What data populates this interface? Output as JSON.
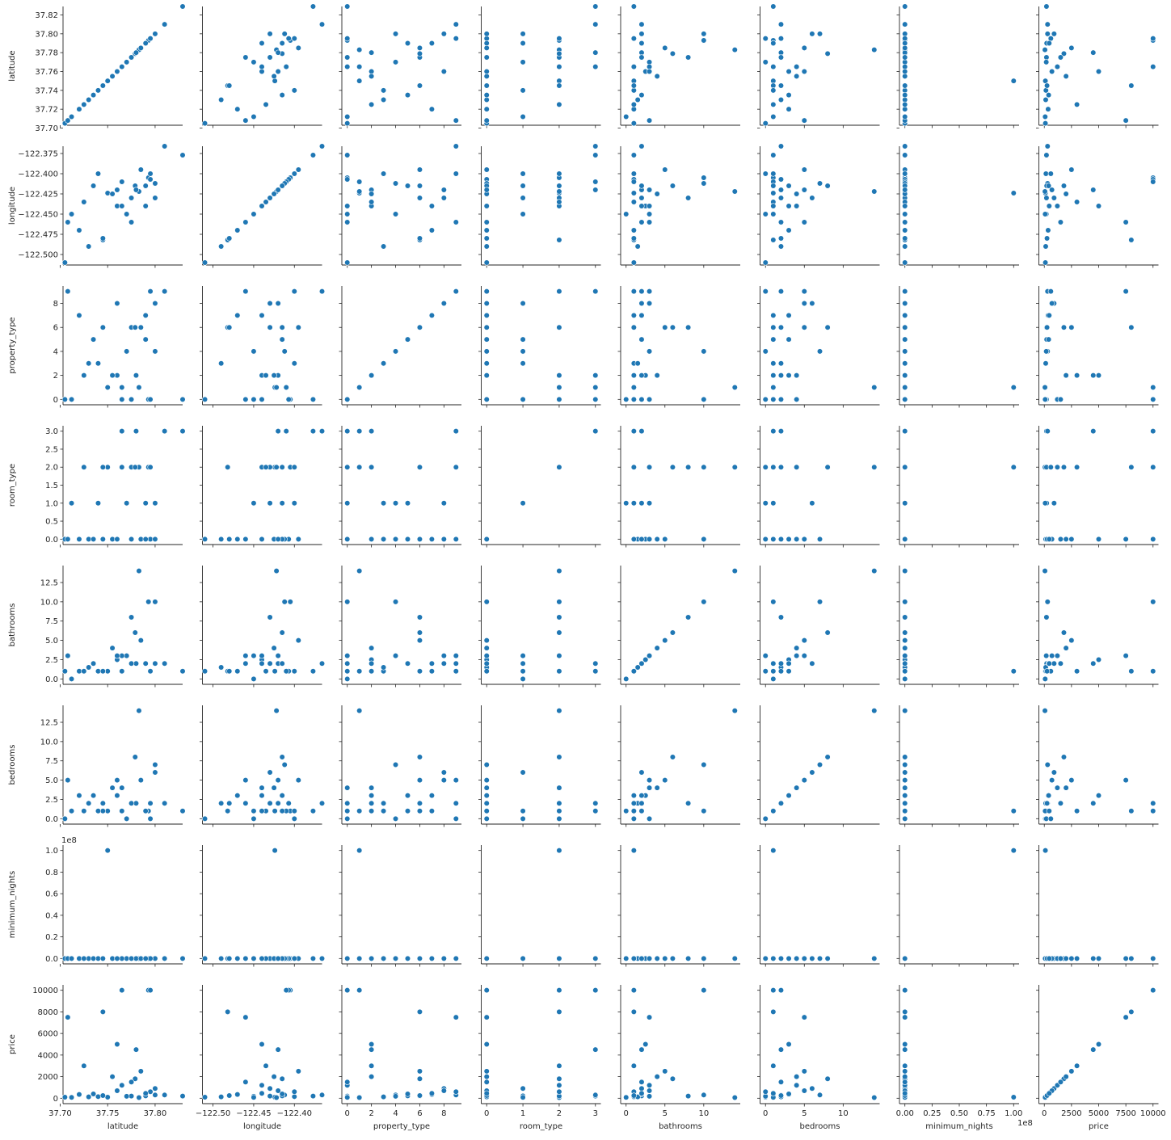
{
  "figure": {
    "title": ""
  },
  "colors": {
    "point": "#1f77b4",
    "point_edge": "#ffffff",
    "axis": "#262626",
    "background": "#ffffff"
  },
  "chart_data": {
    "type": "scatter",
    "kind": "pairplot-matrix",
    "grid": false,
    "variables": [
      "latitude",
      "longitude",
      "property_type",
      "room_type",
      "bathrooms",
      "bedrooms",
      "minimum_nights",
      "price"
    ],
    "axes": {
      "latitude": {
        "range": [
          37.703,
          37.829
        ],
        "ticks": [
          37.7,
          37.72,
          37.74,
          37.76,
          37.78,
          37.8,
          37.82
        ],
        "tick_labels_y": [
          "37.70",
          "37.72",
          "37.74",
          "37.76",
          "37.78",
          "37.80",
          "37.82"
        ],
        "tick_labels_x": [
          "37.70",
          "37.75",
          "37.80"
        ],
        "ticks_x": [
          37.7,
          37.75,
          37.8
        ]
      },
      "longitude": {
        "range": [
          -122.513,
          -122.366
        ],
        "ticks": [
          -122.5,
          -122.475,
          -122.45,
          -122.425,
          -122.4,
          -122.375
        ],
        "tick_labels_y": [
          "−122.500",
          "−122.475",
          "−122.450",
          "−122.425",
          "−122.400",
          "−122.375"
        ],
        "ticks_x": [
          -122.5,
          -122.45,
          -122.4
        ],
        "tick_labels_x": [
          "−122.50",
          "−122.45",
          "−122.40"
        ]
      },
      "property_type": {
        "range": [
          -0.45,
          9.45
        ],
        "ticks": [
          0,
          2,
          4,
          6,
          8
        ],
        "tick_labels_y": [
          "0",
          "2",
          "4",
          "6",
          "8"
        ],
        "ticks_x": [
          0,
          2,
          4,
          6,
          8
        ],
        "tick_labels_x": [
          "0",
          "2",
          "4",
          "6",
          "8"
        ]
      },
      "room_type": {
        "range": [
          -0.15,
          3.15
        ],
        "ticks": [
          0.0,
          0.5,
          1.0,
          1.5,
          2.0,
          2.5,
          3.0
        ],
        "tick_labels_y": [
          "0.0",
          "0.5",
          "1.0",
          "1.5",
          "2.0",
          "2.5",
          "3.0"
        ],
        "ticks_x": [
          0,
          1,
          2,
          3
        ],
        "tick_labels_x": [
          "0",
          "1",
          "2",
          "3"
        ]
      },
      "bathrooms": {
        "range": [
          -0.7,
          14.7
        ],
        "ticks": [
          0.0,
          2.5,
          5.0,
          7.5,
          10.0,
          12.5
        ],
        "tick_labels_y": [
          "0.0",
          "2.5",
          "5.0",
          "7.5",
          "10.0",
          "12.5"
        ],
        "ticks_x": [
          0,
          5,
          10
        ],
        "tick_labels_x": [
          "0",
          "5",
          "10"
        ]
      },
      "bedrooms": {
        "range": [
          -0.7,
          14.7
        ],
        "ticks": [
          0.0,
          2.5,
          5.0,
          7.5,
          10.0,
          12.5
        ],
        "tick_labels_y": [
          "0.0",
          "2.5",
          "5.0",
          "7.5",
          "10.0",
          "12.5"
        ],
        "ticks_x": [
          0,
          5,
          10
        ],
        "tick_labels_x": [
          "0",
          "5",
          "10"
        ]
      },
      "minimum_nights": {
        "range": [
          -5000000,
          105000000
        ],
        "ticks": [
          0,
          20000000,
          40000000,
          60000000,
          80000000,
          100000000
        ],
        "tick_labels_y": [
          "0.0",
          "0.2",
          "0.4",
          "0.6",
          "0.8",
          "1.0"
        ],
        "ticks_x": [
          0,
          25000000,
          50000000,
          75000000,
          100000000
        ],
        "tick_labels_x": [
          "0.00",
          "0.25",
          "0.50",
          "0.75",
          "1.00"
        ],
        "offset_text": "1e8"
      },
      "price": {
        "range": [
          -500,
          10500
        ],
        "ticks": [
          0,
          2000,
          4000,
          6000,
          8000,
          10000
        ],
        "tick_labels_y": [
          "0",
          "2000",
          "4000",
          "6000",
          "8000",
          "10000"
        ],
        "ticks_x": [
          0,
          2500,
          5000,
          7500,
          10000
        ],
        "tick_labels_x": [
          "0",
          "2500",
          "5000",
          "7500",
          "10000"
        ]
      }
    },
    "rows": [
      {
        "latitude": 37.829,
        "longitude": -122.377,
        "property_type": 0,
        "room_type": 3,
        "bathrooms": 1,
        "bedrooms": 1,
        "minimum_nights": 0,
        "price": 200
      },
      {
        "latitude": 37.705,
        "longitude": -122.51,
        "property_type": 0,
        "room_type": 0,
        "bathrooms": 1,
        "bedrooms": 0,
        "minimum_nights": 1,
        "price": 100
      },
      {
        "latitude": 37.81,
        "longitude": -122.366,
        "property_type": 9,
        "room_type": 3,
        "bathrooms": 2,
        "bedrooms": 2,
        "minimum_nights": 2,
        "price": 300
      },
      {
        "latitude": 37.75,
        "longitude": -122.424,
        "property_type": 1,
        "room_type": 2,
        "bathrooms": 1,
        "bedrooms": 1,
        "minimum_nights": 100000000,
        "price": 100
      },
      {
        "latitude": 37.783,
        "longitude": -122.422,
        "property_type": 1,
        "room_type": 2,
        "bathrooms": 14,
        "bedrooms": 14,
        "minimum_nights": 1,
        "price": 60
      },
      {
        "latitude": 37.708,
        "longitude": -122.46,
        "property_type": 9,
        "room_type": 0,
        "bathrooms": 3,
        "bedrooms": 5,
        "minimum_nights": 2,
        "price": 7500
      },
      {
        "latitude": 37.745,
        "longitude": -122.482,
        "property_type": 6,
        "room_type": 2,
        "bathrooms": 1,
        "bedrooms": 1,
        "minimum_nights": 1,
        "price": 8000
      },
      {
        "latitude": 37.793,
        "longitude": -122.405,
        "property_type": 0,
        "room_type": 2,
        "bathrooms": 10,
        "bedrooms": 1,
        "minimum_nights": 3,
        "price": 10000
      },
      {
        "latitude": 37.795,
        "longitude": -122.407,
        "property_type": 0,
        "room_type": 0,
        "bathrooms": 1,
        "bedrooms": 2,
        "minimum_nights": 2,
        "price": 10000
      },
      {
        "latitude": 37.765,
        "longitude": -122.41,
        "property_type": 1,
        "room_type": 3,
        "bathrooms": 1,
        "bedrooms": 1,
        "minimum_nights": 1,
        "price": 10000
      },
      {
        "latitude": 37.775,
        "longitude": -122.43,
        "property_type": 6,
        "room_type": 2,
        "bathrooms": 8,
        "bedrooms": 2,
        "minimum_nights": 1,
        "price": 200
      },
      {
        "latitude": 37.779,
        "longitude": -122.415,
        "property_type": 6,
        "room_type": 2,
        "bathrooms": 6,
        "bedrooms": 8,
        "minimum_nights": 2,
        "price": 1800
      },
      {
        "latitude": 37.8,
        "longitude": -122.412,
        "property_type": 4,
        "room_type": 0,
        "bathrooms": 10,
        "bedrooms": 7,
        "minimum_nights": 1,
        "price": 300
      },
      {
        "latitude": 37.76,
        "longitude": -122.44,
        "property_type": 2,
        "room_type": 0,
        "bathrooms": 2.5,
        "bedrooms": 3,
        "minimum_nights": 2,
        "price": 5000
      },
      {
        "latitude": 37.78,
        "longitude": -122.42,
        "property_type": 2,
        "room_type": 3,
        "bathrooms": 2,
        "bedrooms": 2,
        "minimum_nights": 1,
        "price": 4500
      },
      {
        "latitude": 37.74,
        "longitude": -122.4,
        "property_type": 3,
        "room_type": 1,
        "bathrooms": 1,
        "bedrooms": 1,
        "minimum_nights": 30,
        "price": 150
      },
      {
        "latitude": 37.77,
        "longitude": -122.45,
        "property_type": 4,
        "room_type": 1,
        "bathrooms": 3,
        "bedrooms": 0,
        "minimum_nights": 2,
        "price": 180
      },
      {
        "latitude": 37.79,
        "longitude": -122.415,
        "property_type": 5,
        "room_type": 1,
        "bathrooms": 2,
        "bedrooms": 1,
        "minimum_nights": 3,
        "price": 220
      },
      {
        "latitude": 37.72,
        "longitude": -122.47,
        "property_type": 7,
        "room_type": 0,
        "bathrooms": 1,
        "bedrooms": 3,
        "minimum_nights": 2,
        "price": 350
      },
      {
        "latitude": 37.8,
        "longitude": -122.43,
        "property_type": 8,
        "room_type": 1,
        "bathrooms": 2,
        "bedrooms": 6,
        "minimum_nights": 1,
        "price": 900
      },
      {
        "latitude": 37.73,
        "longitude": -122.49,
        "property_type": 3,
        "room_type": 0,
        "bathrooms": 1.5,
        "bedrooms": 2,
        "minimum_nights": 2,
        "price": 130
      },
      {
        "latitude": 37.755,
        "longitude": -122.425,
        "property_type": 2,
        "room_type": 0,
        "bathrooms": 4,
        "bedrooms": 4,
        "minimum_nights": 3,
        "price": 2000
      },
      {
        "latitude": 37.785,
        "longitude": -122.395,
        "property_type": 6,
        "room_type": 0,
        "bathrooms": 5,
        "bedrooms": 5,
        "minimum_nights": 2,
        "price": 2500
      },
      {
        "latitude": 37.765,
        "longitude": -122.44,
        "property_type": 0,
        "room_type": 2,
        "bathrooms": 3,
        "bedrooms": 4,
        "minimum_nights": 1,
        "price": 1200
      },
      {
        "latitude": 37.712,
        "longitude": -122.45,
        "property_type": 0,
        "room_type": 1,
        "bathrooms": 0,
        "bedrooms": 1,
        "minimum_nights": 2,
        "price": 80
      },
      {
        "latitude": 37.735,
        "longitude": -122.415,
        "property_type": 5,
        "room_type": 0,
        "bathrooms": 2,
        "bedrooms": 3,
        "minimum_nights": 1,
        "price": 400
      },
      {
        "latitude": 37.795,
        "longitude": -122.4,
        "property_type": 9,
        "room_type": 2,
        "bathrooms": 1,
        "bedrooms": 0,
        "minimum_nights": 2,
        "price": 600
      },
      {
        "latitude": 37.745,
        "longitude": -122.48,
        "property_type": 6,
        "room_type": 0,
        "bathrooms": 1,
        "bedrooms": 2,
        "minimum_nights": 3,
        "price": 250
      },
      {
        "latitude": 37.725,
        "longitude": -122.435,
        "property_type": 2,
        "room_type": 2,
        "bathrooms": 1,
        "bedrooms": 1,
        "minimum_nights": 1,
        "price": 3000
      },
      {
        "latitude": 37.775,
        "longitude": -122.46,
        "property_type": 0,
        "room_type": 0,
        "bathrooms": 2,
        "bedrooms": 2,
        "minimum_nights": 2,
        "price": 1500
      },
      {
        "latitude": 37.76,
        "longitude": -122.42,
        "property_type": 8,
        "room_type": 0,
        "bathrooms": 3,
        "bedrooms": 5,
        "minimum_nights": 1,
        "price": 700
      },
      {
        "latitude": 37.79,
        "longitude": -122.44,
        "property_type": 7,
        "room_type": 0,
        "bathrooms": 2,
        "bedrooms": 1,
        "minimum_nights": 2,
        "price": 450
      }
    ],
    "title": "",
    "legend": null
  }
}
